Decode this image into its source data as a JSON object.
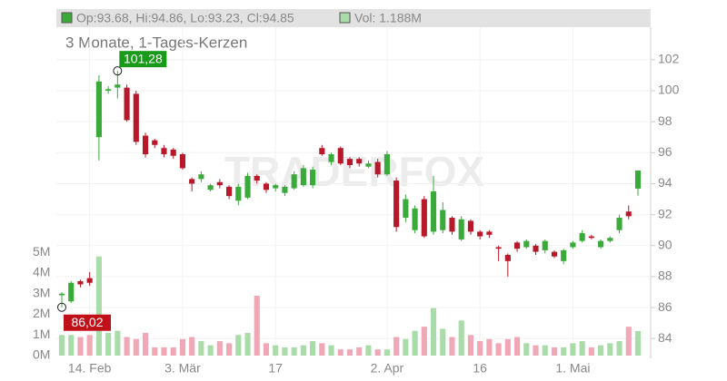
{
  "chart_data": {
    "type": "candlestick",
    "header": "Op:93.68, Hi:94.86, Lo:93.23, Cl:94.85",
    "volume_header": "Vol: 1.188M",
    "subtitle": "3 Monate, 1-Tages-Kerzen",
    "watermark": "TRADERFOX",
    "up_color": "#3aaa3a",
    "down_color": "#b8192a",
    "volume_up_color": "#a9dca9",
    "volume_down_color": "#f0a8b6",
    "categories": [
      null,
      null,
      null,
      "14. Feb",
      null,
      null,
      null,
      null,
      null,
      null,
      null,
      null,
      null,
      "3. Mär",
      null,
      null,
      null,
      null,
      null,
      null,
      null,
      null,
      null,
      "17",
      null,
      null,
      null,
      null,
      null,
      null,
      null,
      null,
      null,
      null,
      null,
      "2. Apr",
      null,
      null,
      null,
      null,
      null,
      null,
      null,
      null,
      null,
      "16",
      null,
      null,
      null,
      null,
      null,
      null,
      null,
      null,
      null,
      "1. Mai",
      null,
      null,
      null,
      null,
      null,
      null,
      null
    ],
    "open": [
      86.8,
      86.4,
      87.7,
      87.9,
      97.0,
      100.0,
      100.2,
      100.2,
      99.8,
      97.1,
      96.8,
      96.3,
      96.2,
      95.9,
      94.3,
      94.3,
      93.6,
      94.1,
      93.8,
      92.9,
      93.1,
      94.5,
      94.0,
      93.7,
      93.4,
      93.7,
      93.9,
      93.9,
      96.3,
      95.4,
      96.3,
      95.6,
      95.6,
      95.1,
      95.4,
      94.6,
      94.2,
      91.8,
      91.0,
      93.0,
      90.9,
      91.0,
      91.8,
      90.4,
      91.6,
      90.9,
      90.9,
      89.9,
      89.4,
      90.2,
      89.9,
      90.0,
      89.7,
      89.6,
      89.0,
      89.9,
      90.3,
      90.6,
      89.9,
      90.3,
      91.0,
      92.2,
      93.68
    ],
    "high": [
      87.0,
      87.7,
      87.8,
      88.3,
      101.0,
      100.3,
      101.28,
      100.4,
      100.0,
      97.3,
      96.9,
      96.5,
      96.3,
      96.0,
      94.4,
      94.8,
      94.0,
      94.3,
      93.9,
      94.0,
      94.7,
      94.6,
      94.1,
      94.0,
      93.9,
      94.8,
      95.2,
      95.1,
      96.5,
      96.0,
      96.4,
      95.7,
      95.7,
      95.5,
      95.6,
      96.1,
      94.4,
      93.3,
      92.6,
      93.2,
      94.5,
      92.8,
      91.9,
      91.9,
      91.7,
      91.0,
      91.0,
      90.0,
      89.5,
      90.3,
      90.4,
      90.1,
      90.4,
      89.7,
      89.8,
      90.3,
      91.0,
      90.7,
      90.4,
      90.6,
      92.0,
      92.6,
      94.86
    ],
    "low": [
      86.02,
      86.3,
      87.3,
      87.4,
      95.5,
      99.8,
      99.5,
      98.0,
      96.5,
      95.7,
      96.3,
      95.7,
      95.6,
      94.9,
      93.5,
      94.1,
      93.5,
      93.7,
      93.0,
      92.6,
      93.0,
      94.0,
      93.4,
      93.5,
      93.2,
      93.6,
      93.8,
      93.7,
      95.8,
      95.2,
      95.2,
      95.0,
      95.1,
      95.0,
      94.4,
      94.5,
      90.9,
      91.5,
      90.8,
      90.5,
      90.7,
      90.8,
      90.7,
      90.3,
      90.7,
      90.4,
      90.5,
      89.0,
      88.0,
      89.6,
      89.8,
      89.4,
      89.5,
      89.2,
      88.8,
      89.8,
      90.2,
      90.4,
      89.8,
      90.2,
      90.8,
      91.7,
      93.23
    ],
    "close": [
      86.9,
      87.6,
      87.5,
      87.6,
      100.6,
      100.1,
      100.4,
      98.1,
      96.7,
      95.9,
      96.5,
      95.9,
      95.8,
      95.0,
      94.0,
      94.6,
      93.9,
      93.9,
      93.2,
      93.8,
      94.5,
      94.2,
      93.6,
      93.9,
      93.8,
      94.6,
      95.0,
      94.9,
      95.9,
      95.9,
      95.3,
      95.2,
      95.3,
      95.3,
      94.6,
      95.9,
      91.2,
      93.0,
      92.4,
      90.6,
      93.5,
      92.3,
      90.9,
      91.7,
      90.9,
      90.6,
      90.7,
      89.8,
      89.0,
      89.8,
      90.3,
      89.6,
      90.3,
      89.3,
      89.7,
      90.2,
      90.8,
      90.5,
      90.3,
      90.5,
      91.8,
      91.9,
      94.85
    ],
    "volume": [
      1.0,
      1.0,
      0.9,
      1.0,
      4.8,
      1.1,
      1.2,
      0.9,
      0.8,
      1.1,
      0.4,
      0.4,
      0.4,
      0.8,
      0.9,
      0.7,
      0.5,
      0.7,
      0.6,
      1.0,
      1.1,
      2.9,
      0.6,
      0.5,
      0.4,
      0.4,
      0.5,
      0.7,
      0.6,
      0.5,
      0.3,
      0.3,
      0.4,
      0.5,
      0.3,
      0.3,
      0.9,
      0.8,
      1.2,
      1.4,
      2.3,
      1.3,
      0.9,
      1.7,
      1.0,
      0.7,
      0.8,
      0.6,
      0.8,
      0.9,
      0.6,
      0.5,
      0.5,
      0.4,
      0.4,
      0.6,
      0.7,
      0.4,
      0.5,
      0.6,
      0.7,
      1.4,
      1.188
    ],
    "high_marker": {
      "value": 101.28,
      "label": "101,28"
    },
    "low_marker": {
      "value": 86.02,
      "label": "86,02"
    },
    "ylim": [
      82.9,
      104.1
    ],
    "yticks": [
      84,
      86,
      88,
      90,
      92,
      94,
      96,
      98,
      100,
      102
    ],
    "volume_lim": [
      0,
      15.9
    ],
    "volume_ticks": [
      {
        "value": 0,
        "label": "0M"
      },
      {
        "value": 1,
        "label": "1M"
      },
      {
        "value": 2,
        "label": "2M"
      },
      {
        "value": 3,
        "label": "3M"
      },
      {
        "value": 4,
        "label": "4M"
      },
      {
        "value": 5,
        "label": "5M"
      }
    ],
    "grid": true
  }
}
